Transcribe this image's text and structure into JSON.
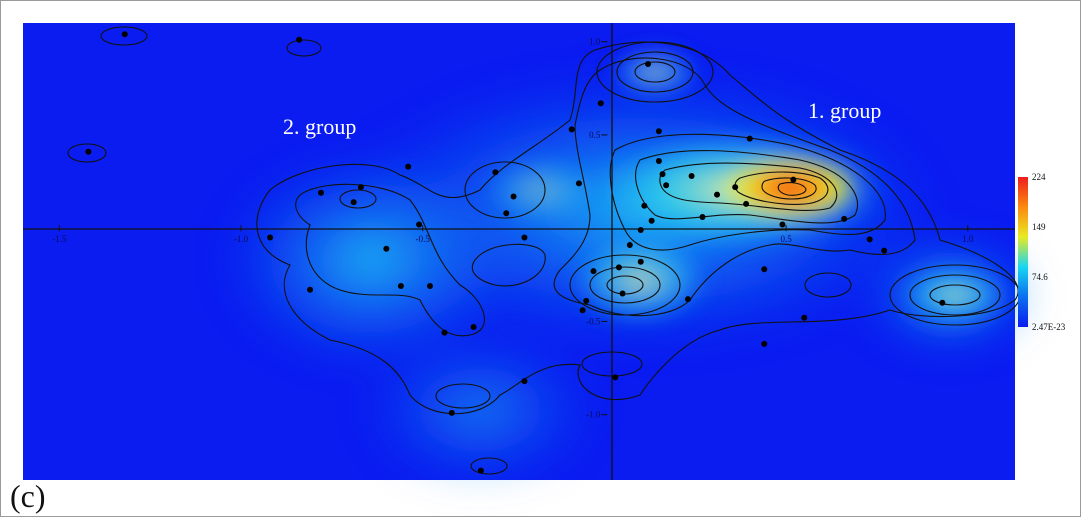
{
  "panel_label": "(c)",
  "chart_data": {
    "type": "heatmap",
    "title": "",
    "xlabel": "",
    "ylabel": "",
    "xlim": [
      -1.6,
      1.13
    ],
    "ylim": [
      -1.35,
      1.1
    ],
    "x_ticks": [
      {
        "value": -1.5,
        "label": "-1.5"
      },
      {
        "value": -1.0,
        "label": "-1.0"
      },
      {
        "value": -0.5,
        "label": "-0.5"
      },
      {
        "value": 0.5,
        "label": "0.5"
      },
      {
        "value": 1.0,
        "label": "1.0"
      }
    ],
    "y_ticks": [
      {
        "value": 1.0,
        "label": "1.0"
      },
      {
        "value": 0.5,
        "label": "0.5"
      },
      {
        "value": -0.5,
        "label": "-0.5"
      },
      {
        "value": -1.0,
        "label": "-1.0"
      }
    ],
    "colorbar": {
      "colors": [
        "#0a1cf0",
        "#0b6ef0",
        "#17d6f2",
        "#e8ea23",
        "#fb8a10",
        "#ee1d1d"
      ],
      "ticks": [
        {
          "value": 224,
          "label": "224"
        },
        {
          "value": 149,
          "label": "149"
        },
        {
          "value": 74.6,
          "label": "74.6"
        },
        {
          "value": 2.47e-23,
          "label": "2.47E-23"
        }
      ],
      "min": 2.47e-23,
      "max": 224
    },
    "annotations": [
      {
        "text": "1. group",
        "x": 0.65,
        "y": 0.65
      },
      {
        "text": "2. group",
        "x": -0.85,
        "y": 0.55
      }
    ],
    "points": [
      {
        "x": -1.32,
        "y": 1.04
      },
      {
        "x": -0.84,
        "y": 1.01
      },
      {
        "x": -1.42,
        "y": 0.41
      },
      {
        "x": -0.78,
        "y": 0.19
      },
      {
        "x": -0.67,
        "y": 0.22
      },
      {
        "x": -0.69,
        "y": 0.14
      },
      {
        "x": -0.54,
        "y": 0.33
      },
      {
        "x": -0.51,
        "y": 0.02
      },
      {
        "x": -0.92,
        "y": -0.05
      },
      {
        "x": -0.6,
        "y": -0.11
      },
      {
        "x": -0.81,
        "y": -0.33
      },
      {
        "x": -0.56,
        "y": -0.31
      },
      {
        "x": -0.48,
        "y": -0.31
      },
      {
        "x": -0.44,
        "y": -0.56
      },
      {
        "x": -0.36,
        "y": -0.53
      },
      {
        "x": -0.3,
        "y": 0.3
      },
      {
        "x": -0.25,
        "y": 0.17
      },
      {
        "x": -0.27,
        "y": 0.08
      },
      {
        "x": -0.22,
        "y": -0.05
      },
      {
        "x": -0.09,
        "y": 0.53
      },
      {
        "x": -0.07,
        "y": 0.24
      },
      {
        "x": -0.01,
        "y": 0.67
      },
      {
        "x": 0.12,
        "y": 0.88
      },
      {
        "x": -0.03,
        "y": -0.23
      },
      {
        "x": -0.05,
        "y": -0.39
      },
      {
        "x": -0.06,
        "y": -0.44
      },
      {
        "x": 0.05,
        "y": -0.35
      },
      {
        "x": 0.04,
        "y": -0.21
      },
      {
        "x": 0.07,
        "y": -0.09
      },
      {
        "x": 0.1,
        "y": -0.18
      },
      {
        "x": 0.1,
        "y": -0.01
      },
      {
        "x": 0.11,
        "y": 0.12
      },
      {
        "x": 0.13,
        "y": 0.04
      },
      {
        "x": 0.15,
        "y": 0.52
      },
      {
        "x": 0.15,
        "y": 0.36
      },
      {
        "x": 0.16,
        "y": 0.29
      },
      {
        "x": 0.17,
        "y": 0.23
      },
      {
        "x": 0.23,
        "y": -0.38
      },
      {
        "x": 0.24,
        "y": 0.28
      },
      {
        "x": 0.27,
        "y": 0.06
      },
      {
        "x": 0.31,
        "y": 0.18
      },
      {
        "x": 0.36,
        "y": 0.22
      },
      {
        "x": 0.39,
        "y": 0.13
      },
      {
        "x": 0.4,
        "y": 0.48
      },
      {
        "x": 0.44,
        "y": -0.22
      },
      {
        "x": 0.44,
        "y": -0.62
      },
      {
        "x": 0.49,
        "y": 0.02
      },
      {
        "x": 0.52,
        "y": 0.26
      },
      {
        "x": 0.55,
        "y": -0.48
      },
      {
        "x": 0.66,
        "y": 0.05
      },
      {
        "x": 0.73,
        "y": -0.06
      },
      {
        "x": 0.77,
        "y": -0.12
      },
      {
        "x": 0.93,
        "y": -0.4
      },
      {
        "x": 0.03,
        "y": -0.8
      },
      {
        "x": -0.22,
        "y": -0.82
      },
      {
        "x": -0.42,
        "y": -0.99
      },
      {
        "x": -0.34,
        "y": -1.3
      }
    ]
  }
}
